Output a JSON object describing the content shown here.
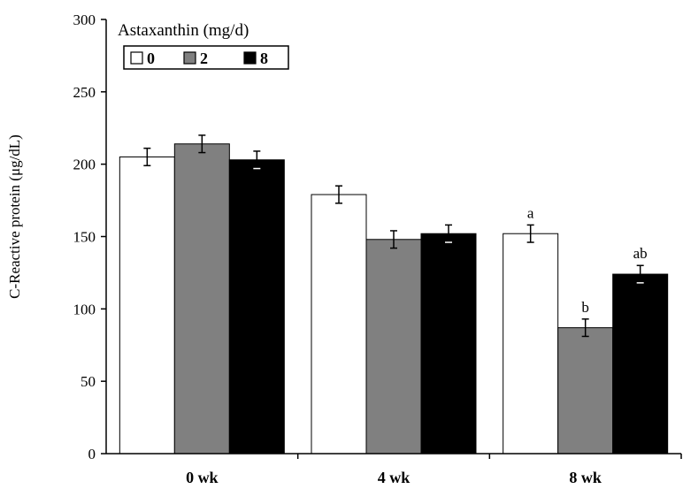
{
  "chart_data": {
    "type": "bar",
    "title": "",
    "xlabel": "",
    "ylabel": "C-Reactive protein (μg/dL)",
    "ylim": [
      0,
      300
    ],
    "yticks": [
      0,
      50,
      100,
      150,
      200,
      250,
      300
    ],
    "categories": [
      "0 wk",
      "4 wk",
      "8 wk"
    ],
    "legend": {
      "title": "Astaxanthin (mg/d)",
      "placement": "top-left"
    },
    "series": [
      {
        "name": "0",
        "color": "#ffffff",
        "values": [
          205,
          179,
          152
        ],
        "errors": [
          6,
          6,
          6
        ],
        "labels": [
          "",
          "",
          "a"
        ]
      },
      {
        "name": "2",
        "color": "#808080",
        "values": [
          214,
          148,
          87
        ],
        "errors": [
          6,
          6,
          6
        ],
        "labels": [
          "",
          "",
          "b"
        ]
      },
      {
        "name": "8",
        "color": "#000000",
        "values": [
          203,
          152,
          124
        ],
        "errors": [
          6,
          6,
          6
        ],
        "labels": [
          "",
          "",
          "ab"
        ]
      }
    ],
    "grid": false
  }
}
